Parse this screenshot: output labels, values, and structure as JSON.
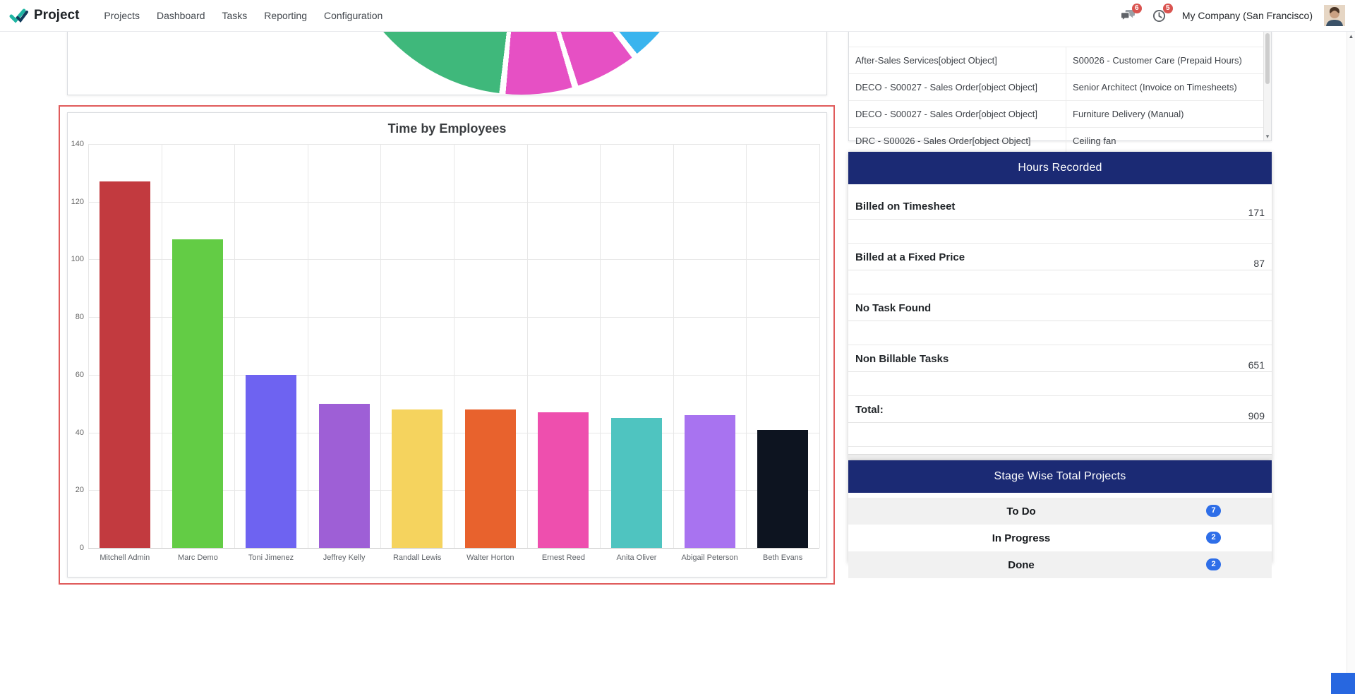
{
  "navbar": {
    "app_name": "Project",
    "menu": [
      "Projects",
      "Dashboard",
      "Tasks",
      "Reporting",
      "Configuration"
    ],
    "messages_badge": "6",
    "activities_badge": "5",
    "company": "My Company (San Francisco)",
    "icons": {
      "logo": "double-check",
      "messages": "speech-bubbles",
      "activities": "clock",
      "avatar": "user-photo"
    }
  },
  "sales_order_table": {
    "rows": [
      {
        "project": "After-Sales Services[object Object]",
        "item": "S00026 - Customer Care (Prepaid Hours)"
      },
      {
        "project": "DECO - S00027 - Sales Order[object Object]",
        "item": "Senior Architect (Invoice on Timesheets)"
      },
      {
        "project": "DECO - S00027 - Sales Order[object Object]",
        "item": "Furniture Delivery (Manual)"
      },
      {
        "project": "DRC - S00026 - Sales Order[object Object]",
        "item": "Ceiling fan"
      }
    ]
  },
  "hours_recorded": {
    "title": "Hours Recorded",
    "header_color": "#1b2a74",
    "rows": [
      {
        "label": "Billed on Timesheet",
        "value": "171"
      },
      {
        "label": "Billed at a Fixed Price",
        "value": "87"
      },
      {
        "label": "No Task Found",
        "value": ""
      },
      {
        "label": "Non Billable Tasks",
        "value": "651"
      },
      {
        "label": "Total:",
        "value": "909"
      }
    ]
  },
  "stage_projects": {
    "title": "Stage Wise Total Projects",
    "header_color": "#1b2a74",
    "badge_color": "#2e6ee8",
    "rows": [
      {
        "label": "To Do",
        "count": "7"
      },
      {
        "label": "In Progress",
        "count": "2"
      },
      {
        "label": "Done",
        "count": "2"
      }
    ]
  },
  "chart_data": [
    {
      "type": "bar",
      "title": "Time by Employees",
      "categories": [
        "Mitchell Admin",
        "Marc Demo",
        "Toni Jimenez",
        "Jeffrey Kelly",
        "Randall Lewis",
        "Walter Horton",
        "Ernest Reed",
        "Anita Oliver",
        "Abigail Peterson",
        "Beth Evans"
      ],
      "values": [
        127,
        107,
        60,
        50,
        48,
        48,
        47,
        45,
        46,
        41
      ],
      "colors": [
        "#c23a3f",
        "#63cc45",
        "#6e63f1",
        "#9e5fd6",
        "#f5d35e",
        "#e8622d",
        "#ee4fae",
        "#4fc4c0",
        "#a873f0",
        "#0d1420"
      ],
      "xlabel": "",
      "ylabel": "",
      "ylim": [
        0,
        140
      ],
      "ytick_step": 20,
      "grid": true,
      "legend": false
    },
    {
      "type": "pie",
      "title": "",
      "segments": [
        {
          "color": "#3ab4ee",
          "from": 126,
          "to": 141
        },
        {
          "color": "#e650c4",
          "from": 143,
          "to": 162
        },
        {
          "color": "#e650c4",
          "from": 164,
          "to": 185
        },
        {
          "color": "#3fb87b",
          "from": 187,
          "to": 267
        }
      ]
    }
  ]
}
